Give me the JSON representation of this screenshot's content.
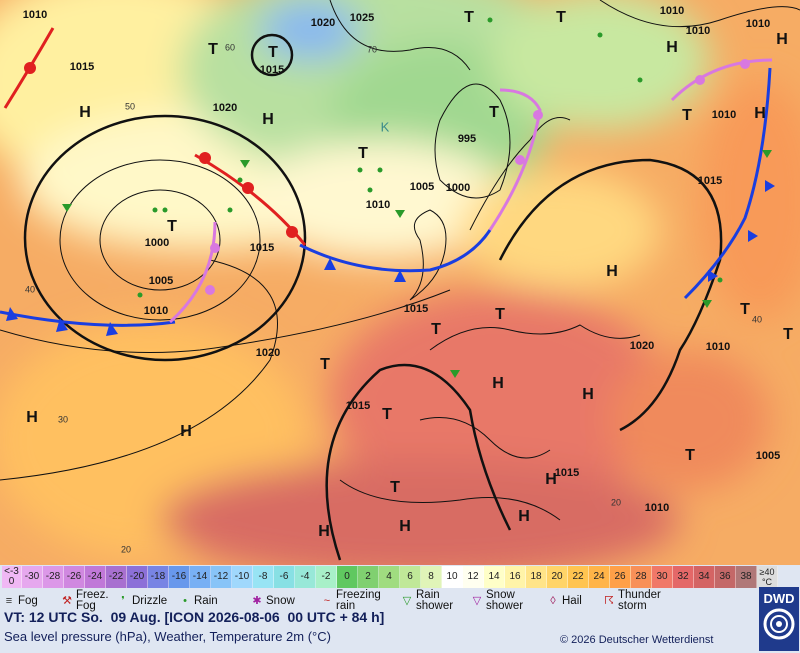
{
  "map": {
    "pressure_labels": [
      1010,
      1025,
      1020,
      1015,
      1015,
      1020,
      995,
      1005,
      1000,
      1010,
      1000,
      1015,
      1005,
      1010,
      1015,
      1020,
      1020,
      1010,
      1015,
      1015,
      1010,
      1005,
      1015,
      1010,
      1010,
      1010,
      1010
    ],
    "isotherm_labels": [
      60,
      50,
      40,
      30,
      20,
      70,
      40,
      20
    ],
    "centers": [
      "H",
      "H",
      "H",
      "H",
      "H",
      "H",
      "H",
      "H",
      "H",
      "H",
      "H",
      "H",
      "H",
      "H",
      "T",
      "T",
      "T",
      "T",
      "T",
      "T",
      "T",
      "T",
      "T",
      "T",
      "T",
      "T",
      "T",
      "T",
      "T",
      "T"
    ],
    "marker": "K"
  },
  "legend": {
    "scale_low": "<-30",
    "scale": [
      {
        "value": -30,
        "color": "#e6a8ee"
      },
      {
        "value": -28,
        "color": "#dc98e8"
      },
      {
        "value": -26,
        "color": "#d088e0"
      },
      {
        "value": -24,
        "color": "#c078d8"
      },
      {
        "value": -22,
        "color": "#a870d0"
      },
      {
        "value": -20,
        "color": "#8c70d8"
      },
      {
        "value": -18,
        "color": "#7884e4"
      },
      {
        "value": -16,
        "color": "#6898ec"
      },
      {
        "value": -14,
        "color": "#78b0f4"
      },
      {
        "value": -12,
        "color": "#88c4f8"
      },
      {
        "value": -10,
        "color": "#a0d8fc"
      },
      {
        "value": -8,
        "color": "#98e4f4"
      },
      {
        "value": -6,
        "color": "#88e0e4"
      },
      {
        "value": -4,
        "color": "#98e8d8"
      },
      {
        "value": -2,
        "color": "#a8f0c8"
      },
      {
        "value": 0,
        "color": "#60c860"
      },
      {
        "value": 2,
        "color": "#80d070"
      },
      {
        "value": 4,
        "color": "#a0dc80"
      },
      {
        "value": 6,
        "color": "#c0e898"
      },
      {
        "value": 8,
        "color": "#e0f4b8"
      },
      {
        "value": 10,
        "color": "#ffffff"
      },
      {
        "value": 12,
        "color": "#fffff0"
      },
      {
        "value": 14,
        "color": "#ffffc8"
      },
      {
        "value": 16,
        "color": "#fff4a8"
      },
      {
        "value": 18,
        "color": "#ffe488"
      },
      {
        "value": 20,
        "color": "#ffd468"
      },
      {
        "value": 22,
        "color": "#ffc450"
      },
      {
        "value": 24,
        "color": "#ffb448"
      },
      {
        "value": 26,
        "color": "#ffa048"
      },
      {
        "value": 28,
        "color": "#f89058"
      },
      {
        "value": 30,
        "color": "#f07868"
      },
      {
        "value": 32,
        "color": "#e46868"
      },
      {
        "value": 34,
        "color": "#d46464"
      },
      {
        "value": 36,
        "color": "#c46868"
      },
      {
        "value": 38,
        "color": "#b07878"
      }
    ],
    "scale_high": "≥40 °C",
    "weather": [
      "Fog",
      "Freez. Fog",
      "Drizzle",
      "Rain",
      "Snow",
      "Freezing rain",
      "Rain shower",
      "Snow shower",
      "Hail",
      "Thunder storm"
    ]
  },
  "footer": {
    "valid_time": "VT: 12 UTC So.  09 Aug. [ICON 2026-08-06  00 UTC + 84 h]",
    "description": "Sea level pressure (hPa), Weather, Temperature 2m (°C)",
    "copyright": "© 2026 Deutscher Wetterdienst",
    "logo": "DWD"
  }
}
